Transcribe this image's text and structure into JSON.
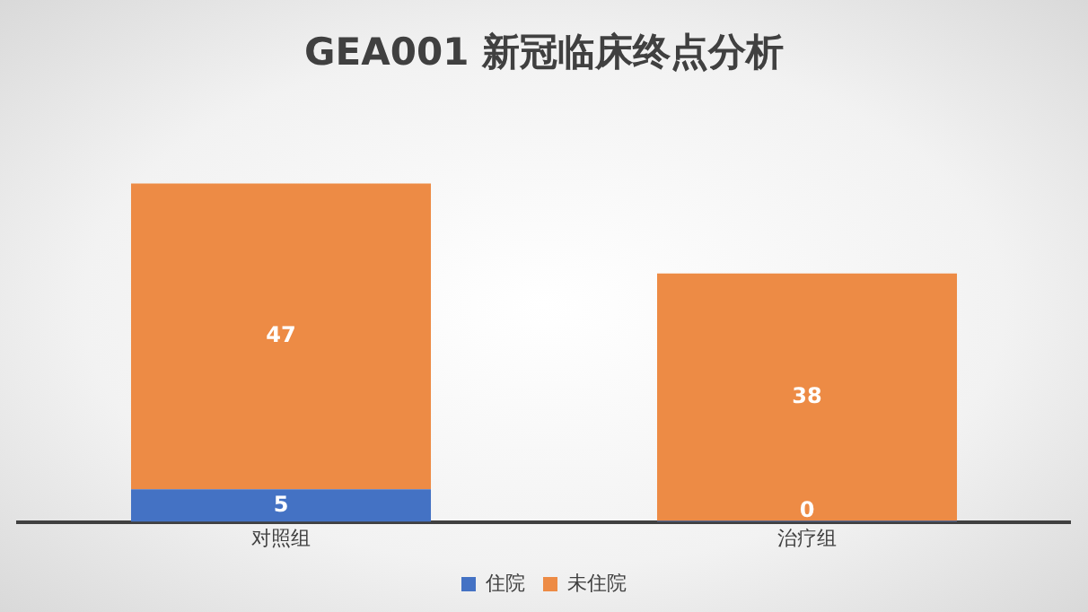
{
  "chart_data": {
    "type": "bar",
    "title": "GEA001 新冠临床终点分析",
    "categories": [
      "对照组",
      "治疗组"
    ],
    "stacked": true,
    "data_labels": true,
    "legend": "bottom",
    "grid": false,
    "series": [
      {
        "name": "住院",
        "color": "#4472c4",
        "values": [
          5,
          0
        ]
      },
      {
        "name": "未住院",
        "color": "#ed8b45",
        "values": [
          47,
          38
        ]
      }
    ]
  }
}
